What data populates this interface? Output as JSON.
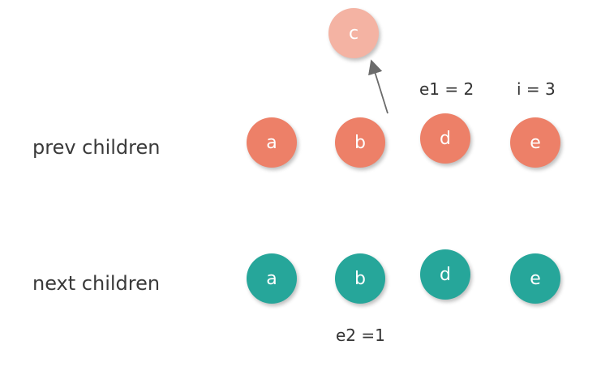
{
  "colors": {
    "prev": "#ed8068",
    "next": "#26a69a",
    "moved": "#f4b3a3",
    "arrow": "#6b6b6b"
  },
  "rows": {
    "prev_label": "prev children",
    "next_label": "next children"
  },
  "prev_nodes": [
    "a",
    "b",
    "d",
    "e"
  ],
  "next_nodes": [
    "a",
    "b",
    "d",
    "e"
  ],
  "moved_node": "c",
  "annotations": {
    "e1": "e1 = 2",
    "i": "i = 3",
    "e2": "e2 =1"
  }
}
